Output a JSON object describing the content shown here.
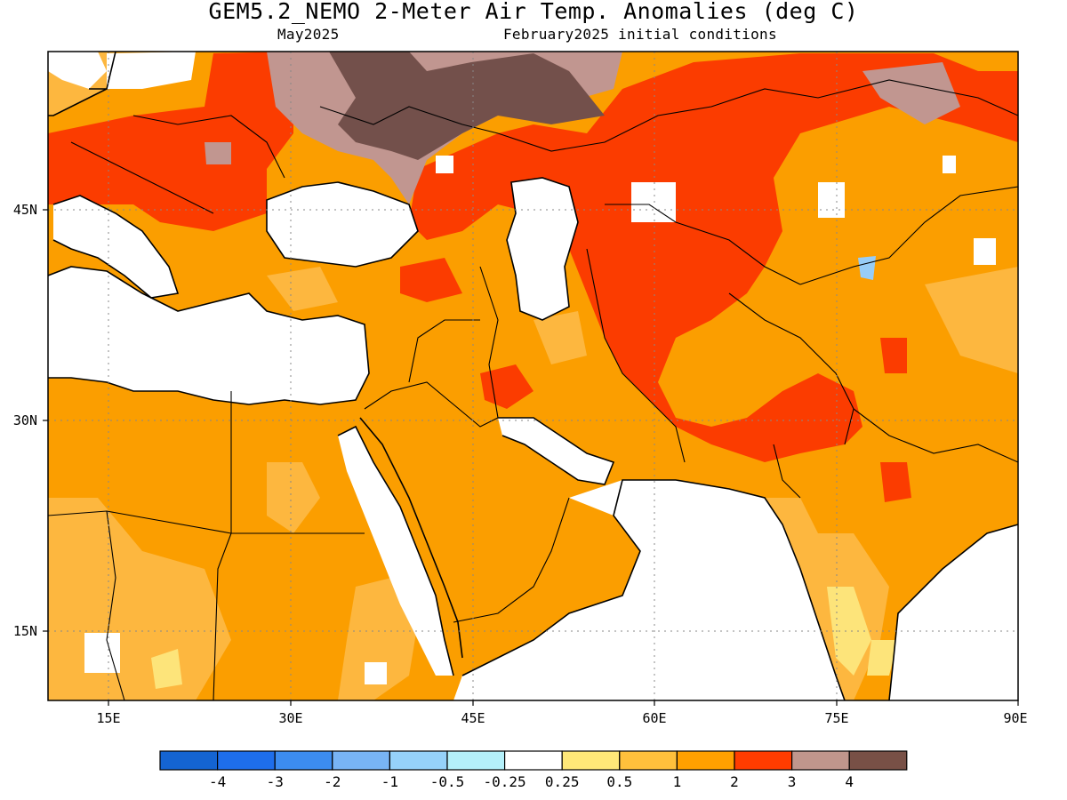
{
  "title": "GEM5.2_NEMO 2-Meter Air Temp. Anomalies (deg C)",
  "subtitle_left": "May2025",
  "subtitle_right": "February2025 initial conditions",
  "map": {
    "lon_ticks": [
      "15E",
      "30E",
      "45E",
      "60E",
      "75E",
      "90E"
    ],
    "lat_ticks": [
      "45N",
      "30N",
      "15N"
    ],
    "extent": {
      "lon": [
        10,
        90
      ],
      "lat": [
        10,
        55
      ]
    }
  },
  "colors": {
    "ocean": "#ffffff",
    "light_orange": "#fdb73f",
    "orange": "#fb9e00",
    "red": "#fb3c00",
    "light_brown": "#c19690",
    "dark_brown": "#73504b",
    "pale_yellow": "#fde47a",
    "light_blue": "#97cdf7",
    "coast": "#000000",
    "grid": "#aaaaaa"
  },
  "colorbar": {
    "colors": [
      "#1464d2",
      "#1e6eeb",
      "#3c8cf0",
      "#78b4f5",
      "#96d2fa",
      "#b4f0fa",
      "#ffffff",
      "#ffe878",
      "#ffc03c",
      "#ffa000",
      "#ff3c00",
      "#c0968c",
      "#785046"
    ],
    "labels": [
      "-4",
      "-3",
      "-2",
      "-1",
      "-0.5",
      "-0.25",
      "0.25",
      "0.5",
      "1",
      "2",
      "3",
      "4"
    ]
  }
}
